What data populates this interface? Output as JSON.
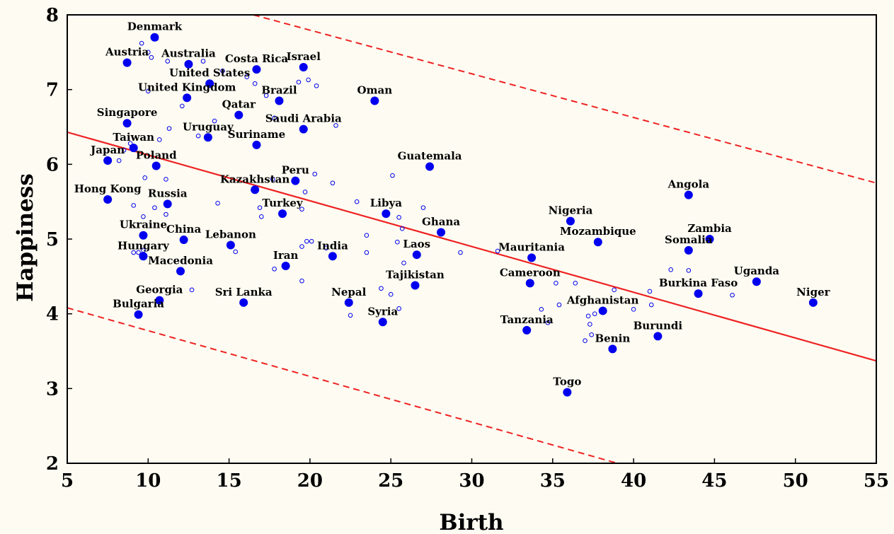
{
  "chart_data": {
    "type": "scatter",
    "xlabel": "Birth",
    "ylabel": "Happiness",
    "xlim": [
      5,
      55
    ],
    "ylim": [
      2,
      8
    ],
    "xticks": [
      "5",
      "10",
      "15",
      "20",
      "25",
      "30",
      "35",
      "40",
      "45",
      "50",
      "55"
    ],
    "yticks": [
      "2",
      "3",
      "4",
      "5",
      "6",
      "7",
      "8"
    ],
    "grid": false,
    "colors": {
      "point": "#0000ee",
      "regression": "#ee2222",
      "background": "#fefcf2"
    },
    "regression_line": {
      "x": [
        5,
        55
      ],
      "y": [
        6.43,
        3.37
      ]
    },
    "confidence_band_upper": {
      "x": [
        16.5,
        55
      ],
      "y": [
        8.0,
        5.75
      ]
    },
    "confidence_band_lower": {
      "x": [
        5,
        39
      ],
      "y": [
        4.08,
        2.0
      ]
    },
    "labeled_points": [
      {
        "label": "Denmark",
        "x": 10.4,
        "y": 7.7
      },
      {
        "label": "Austria",
        "x": 8.7,
        "y": 7.36
      },
      {
        "label": "Australia",
        "x": 12.5,
        "y": 7.34
      },
      {
        "label": "Costa Rica",
        "x": 16.7,
        "y": 7.27
      },
      {
        "label": "Israel",
        "x": 19.6,
        "y": 7.3
      },
      {
        "label": "United States",
        "x": 13.8,
        "y": 7.08
      },
      {
        "label": "United Kingdom",
        "x": 12.4,
        "y": 6.89
      },
      {
        "label": "Brazil",
        "x": 18.1,
        "y": 6.85
      },
      {
        "label": "Oman",
        "x": 24.0,
        "y": 6.85
      },
      {
        "label": "Qatar",
        "x": 15.6,
        "y": 6.66
      },
      {
        "label": "Singapore",
        "x": 8.7,
        "y": 6.55
      },
      {
        "label": "Saudi Arabia",
        "x": 19.6,
        "y": 6.47
      },
      {
        "label": "Uruguay",
        "x": 13.7,
        "y": 6.36
      },
      {
        "label": "Suriname",
        "x": 16.7,
        "y": 6.26
      },
      {
        "label": "Taiwan",
        "x": 9.1,
        "y": 6.22
      },
      {
        "label": "Japan",
        "x": 7.5,
        "y": 6.05
      },
      {
        "label": "Guatemala",
        "x": 27.4,
        "y": 5.97
      },
      {
        "label": "Poland",
        "x": 10.5,
        "y": 5.98
      },
      {
        "label": "Peru",
        "x": 19.1,
        "y": 5.78
      },
      {
        "label": "Kazakhstan",
        "x": 16.6,
        "y": 5.66
      },
      {
        "label": "Angola",
        "x": 43.4,
        "y": 5.59
      },
      {
        "label": "Hong Kong",
        "x": 7.5,
        "y": 5.53
      },
      {
        "label": "Russia",
        "x": 11.2,
        "y": 5.47
      },
      {
        "label": "Libya",
        "x": 24.7,
        "y": 5.34
      },
      {
        "label": "Turkey",
        "x": 18.3,
        "y": 5.34
      },
      {
        "label": "Nigeria",
        "x": 36.1,
        "y": 5.24
      },
      {
        "label": "Ghana",
        "x": 28.1,
        "y": 5.09
      },
      {
        "label": "Ukraine",
        "x": 9.7,
        "y": 5.05
      },
      {
        "label": "China",
        "x": 12.2,
        "y": 4.99
      },
      {
        "label": "Zambia",
        "x": 44.7,
        "y": 5.0
      },
      {
        "label": "Mozambique",
        "x": 37.8,
        "y": 4.96
      },
      {
        "label": "Lebanon",
        "x": 15.1,
        "y": 4.92
      },
      {
        "label": "Somalia",
        "x": 43.4,
        "y": 4.85
      },
      {
        "label": "Laos",
        "x": 26.6,
        "y": 4.79
      },
      {
        "label": "India",
        "x": 21.4,
        "y": 4.77
      },
      {
        "label": "Hungary",
        "x": 9.7,
        "y": 4.77
      },
      {
        "label": "Mauritania",
        "x": 33.7,
        "y": 4.75
      },
      {
        "label": "Iran",
        "x": 18.5,
        "y": 4.64
      },
      {
        "label": "Macedonia",
        "x": 12.0,
        "y": 4.57
      },
      {
        "label": "Uganda",
        "x": 47.6,
        "y": 4.43
      },
      {
        "label": "Cameroon",
        "x": 33.6,
        "y": 4.41
      },
      {
        "label": "Tajikistan",
        "x": 26.5,
        "y": 4.38
      },
      {
        "label": "Burkina Faso",
        "x": 44.0,
        "y": 4.27
      },
      {
        "label": "Georgia",
        "x": 10.7,
        "y": 4.18
      },
      {
        "label": "Sri Lanka",
        "x": 15.9,
        "y": 4.15
      },
      {
        "label": "Nepal",
        "x": 22.4,
        "y": 4.15
      },
      {
        "label": "Niger",
        "x": 51.1,
        "y": 4.15
      },
      {
        "label": "Afghanistan",
        "x": 38.1,
        "y": 4.04
      },
      {
        "label": "Bulgaria",
        "x": 9.4,
        "y": 3.99
      },
      {
        "label": "Syria",
        "x": 24.5,
        "y": 3.89
      },
      {
        "label": "Tanzania",
        "x": 33.4,
        "y": 3.78
      },
      {
        "label": "Burundi",
        "x": 41.5,
        "y": 3.7
      },
      {
        "label": "Benin",
        "x": 38.7,
        "y": 3.53
      },
      {
        "label": "Togo",
        "x": 35.9,
        "y": 2.95
      }
    ],
    "other_points": [
      {
        "x": 9.6,
        "y": 7.62
      },
      {
        "x": 10.0,
        "y": 7.5
      },
      {
        "x": 10.2,
        "y": 7.43
      },
      {
        "x": 10.5,
        "y": 7.68
      },
      {
        "x": 11.2,
        "y": 7.38
      },
      {
        "x": 13.4,
        "y": 7.38
      },
      {
        "x": 14.6,
        "y": 7.25
      },
      {
        "x": 16.1,
        "y": 7.17
      },
      {
        "x": 16.6,
        "y": 7.08
      },
      {
        "x": 19.3,
        "y": 7.1
      },
      {
        "x": 19.9,
        "y": 7.13
      },
      {
        "x": 20.4,
        "y": 7.05
      },
      {
        "x": 17.3,
        "y": 6.92
      },
      {
        "x": 10.0,
        "y": 6.98
      },
      {
        "x": 12.1,
        "y": 6.78
      },
      {
        "x": 17.8,
        "y": 6.62
      },
      {
        "x": 14.1,
        "y": 6.58
      },
      {
        "x": 21.6,
        "y": 6.52
      },
      {
        "x": 11.3,
        "y": 6.48
      },
      {
        "x": 10.7,
        "y": 6.33
      },
      {
        "x": 13.1,
        "y": 6.38
      },
      {
        "x": 8.9,
        "y": 6.28
      },
      {
        "x": 8.5,
        "y": 6.19
      },
      {
        "x": 8.2,
        "y": 6.05
      },
      {
        "x": 20.3,
        "y": 5.87
      },
      {
        "x": 21.4,
        "y": 5.75
      },
      {
        "x": 25.1,
        "y": 5.85
      },
      {
        "x": 9.8,
        "y": 5.82
      },
      {
        "x": 11.1,
        "y": 5.8
      },
      {
        "x": 17.7,
        "y": 5.8
      },
      {
        "x": 19.7,
        "y": 5.63
      },
      {
        "x": 22.9,
        "y": 5.5
      },
      {
        "x": 14.3,
        "y": 5.48
      },
      {
        "x": 16.9,
        "y": 5.42
      },
      {
        "x": 19.5,
        "y": 5.4
      },
      {
        "x": 27.0,
        "y": 5.42
      },
      {
        "x": 9.1,
        "y": 5.45
      },
      {
        "x": 10.4,
        "y": 5.42
      },
      {
        "x": 9.7,
        "y": 5.3
      },
      {
        "x": 11.1,
        "y": 5.33
      },
      {
        "x": 25.5,
        "y": 5.29
      },
      {
        "x": 17.0,
        "y": 5.3
      },
      {
        "x": 25.7,
        "y": 5.14
      },
      {
        "x": 23.5,
        "y": 5.05
      },
      {
        "x": 15.4,
        "y": 4.83
      },
      {
        "x": 19.8,
        "y": 4.97
      },
      {
        "x": 20.1,
        "y": 4.97
      },
      {
        "x": 21.0,
        "y": 4.88
      },
      {
        "x": 19.5,
        "y": 4.9
      },
      {
        "x": 25.4,
        "y": 4.96
      },
      {
        "x": 9.1,
        "y": 4.82
      },
      {
        "x": 9.4,
        "y": 4.82
      },
      {
        "x": 9.7,
        "y": 4.85
      },
      {
        "x": 23.5,
        "y": 4.82
      },
      {
        "x": 29.3,
        "y": 4.82
      },
      {
        "x": 31.6,
        "y": 4.84
      },
      {
        "x": 17.8,
        "y": 4.6
      },
      {
        "x": 19.5,
        "y": 4.44
      },
      {
        "x": 25.8,
        "y": 4.68
      },
      {
        "x": 35.2,
        "y": 4.41
      },
      {
        "x": 36.4,
        "y": 4.41
      },
      {
        "x": 42.3,
        "y": 4.59
      },
      {
        "x": 43.4,
        "y": 4.58
      },
      {
        "x": 41.0,
        "y": 4.3
      },
      {
        "x": 46.1,
        "y": 4.25
      },
      {
        "x": 12.7,
        "y": 4.32
      },
      {
        "x": 24.4,
        "y": 4.34
      },
      {
        "x": 25.0,
        "y": 4.26
      },
      {
        "x": 35.4,
        "y": 4.12
      },
      {
        "x": 34.3,
        "y": 4.06
      },
      {
        "x": 38.8,
        "y": 4.32
      },
      {
        "x": 40.0,
        "y": 4.06
      },
      {
        "x": 41.1,
        "y": 4.12
      },
      {
        "x": 37.2,
        "y": 3.97
      },
      {
        "x": 37.3,
        "y": 3.86
      },
      {
        "x": 34.7,
        "y": 3.88
      },
      {
        "x": 37.6,
        "y": 4.0
      },
      {
        "x": 37.4,
        "y": 3.72
      },
      {
        "x": 37.0,
        "y": 3.64
      },
      {
        "x": 22.5,
        "y": 3.98
      },
      {
        "x": 25.5,
        "y": 4.07
      }
    ]
  }
}
